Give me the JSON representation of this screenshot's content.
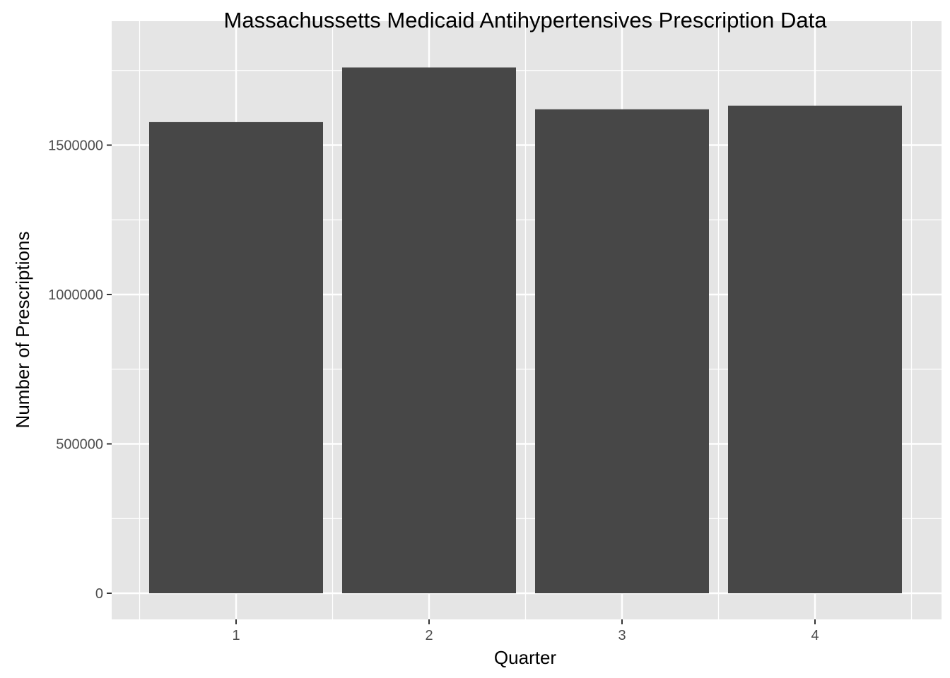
{
  "chart_data": {
    "type": "bar",
    "title": "Massachussetts Medicaid Antihypertensives Prescription Data",
    "xlabel": "Quarter",
    "ylabel": "Number of Prescriptions",
    "categories": [
      "1",
      "2",
      "3",
      "4"
    ],
    "values": [
      1577000,
      1760000,
      1620000,
      1632000
    ],
    "ylim": [
      -85000,
      1842000
    ],
    "yticks": [
      0,
      500000,
      1000000,
      1500000
    ],
    "ytick_labels": [
      "0",
      "500000",
      "1000000",
      "1500000"
    ],
    "grid": true,
    "legend": "none"
  },
  "colors": {
    "panel_background": "#e5e5e5",
    "grid": "#ffffff",
    "bar_fill": "#474747",
    "tick_text": "#4d4d4d",
    "tick_mark": "#333333",
    "text": "#000000"
  }
}
